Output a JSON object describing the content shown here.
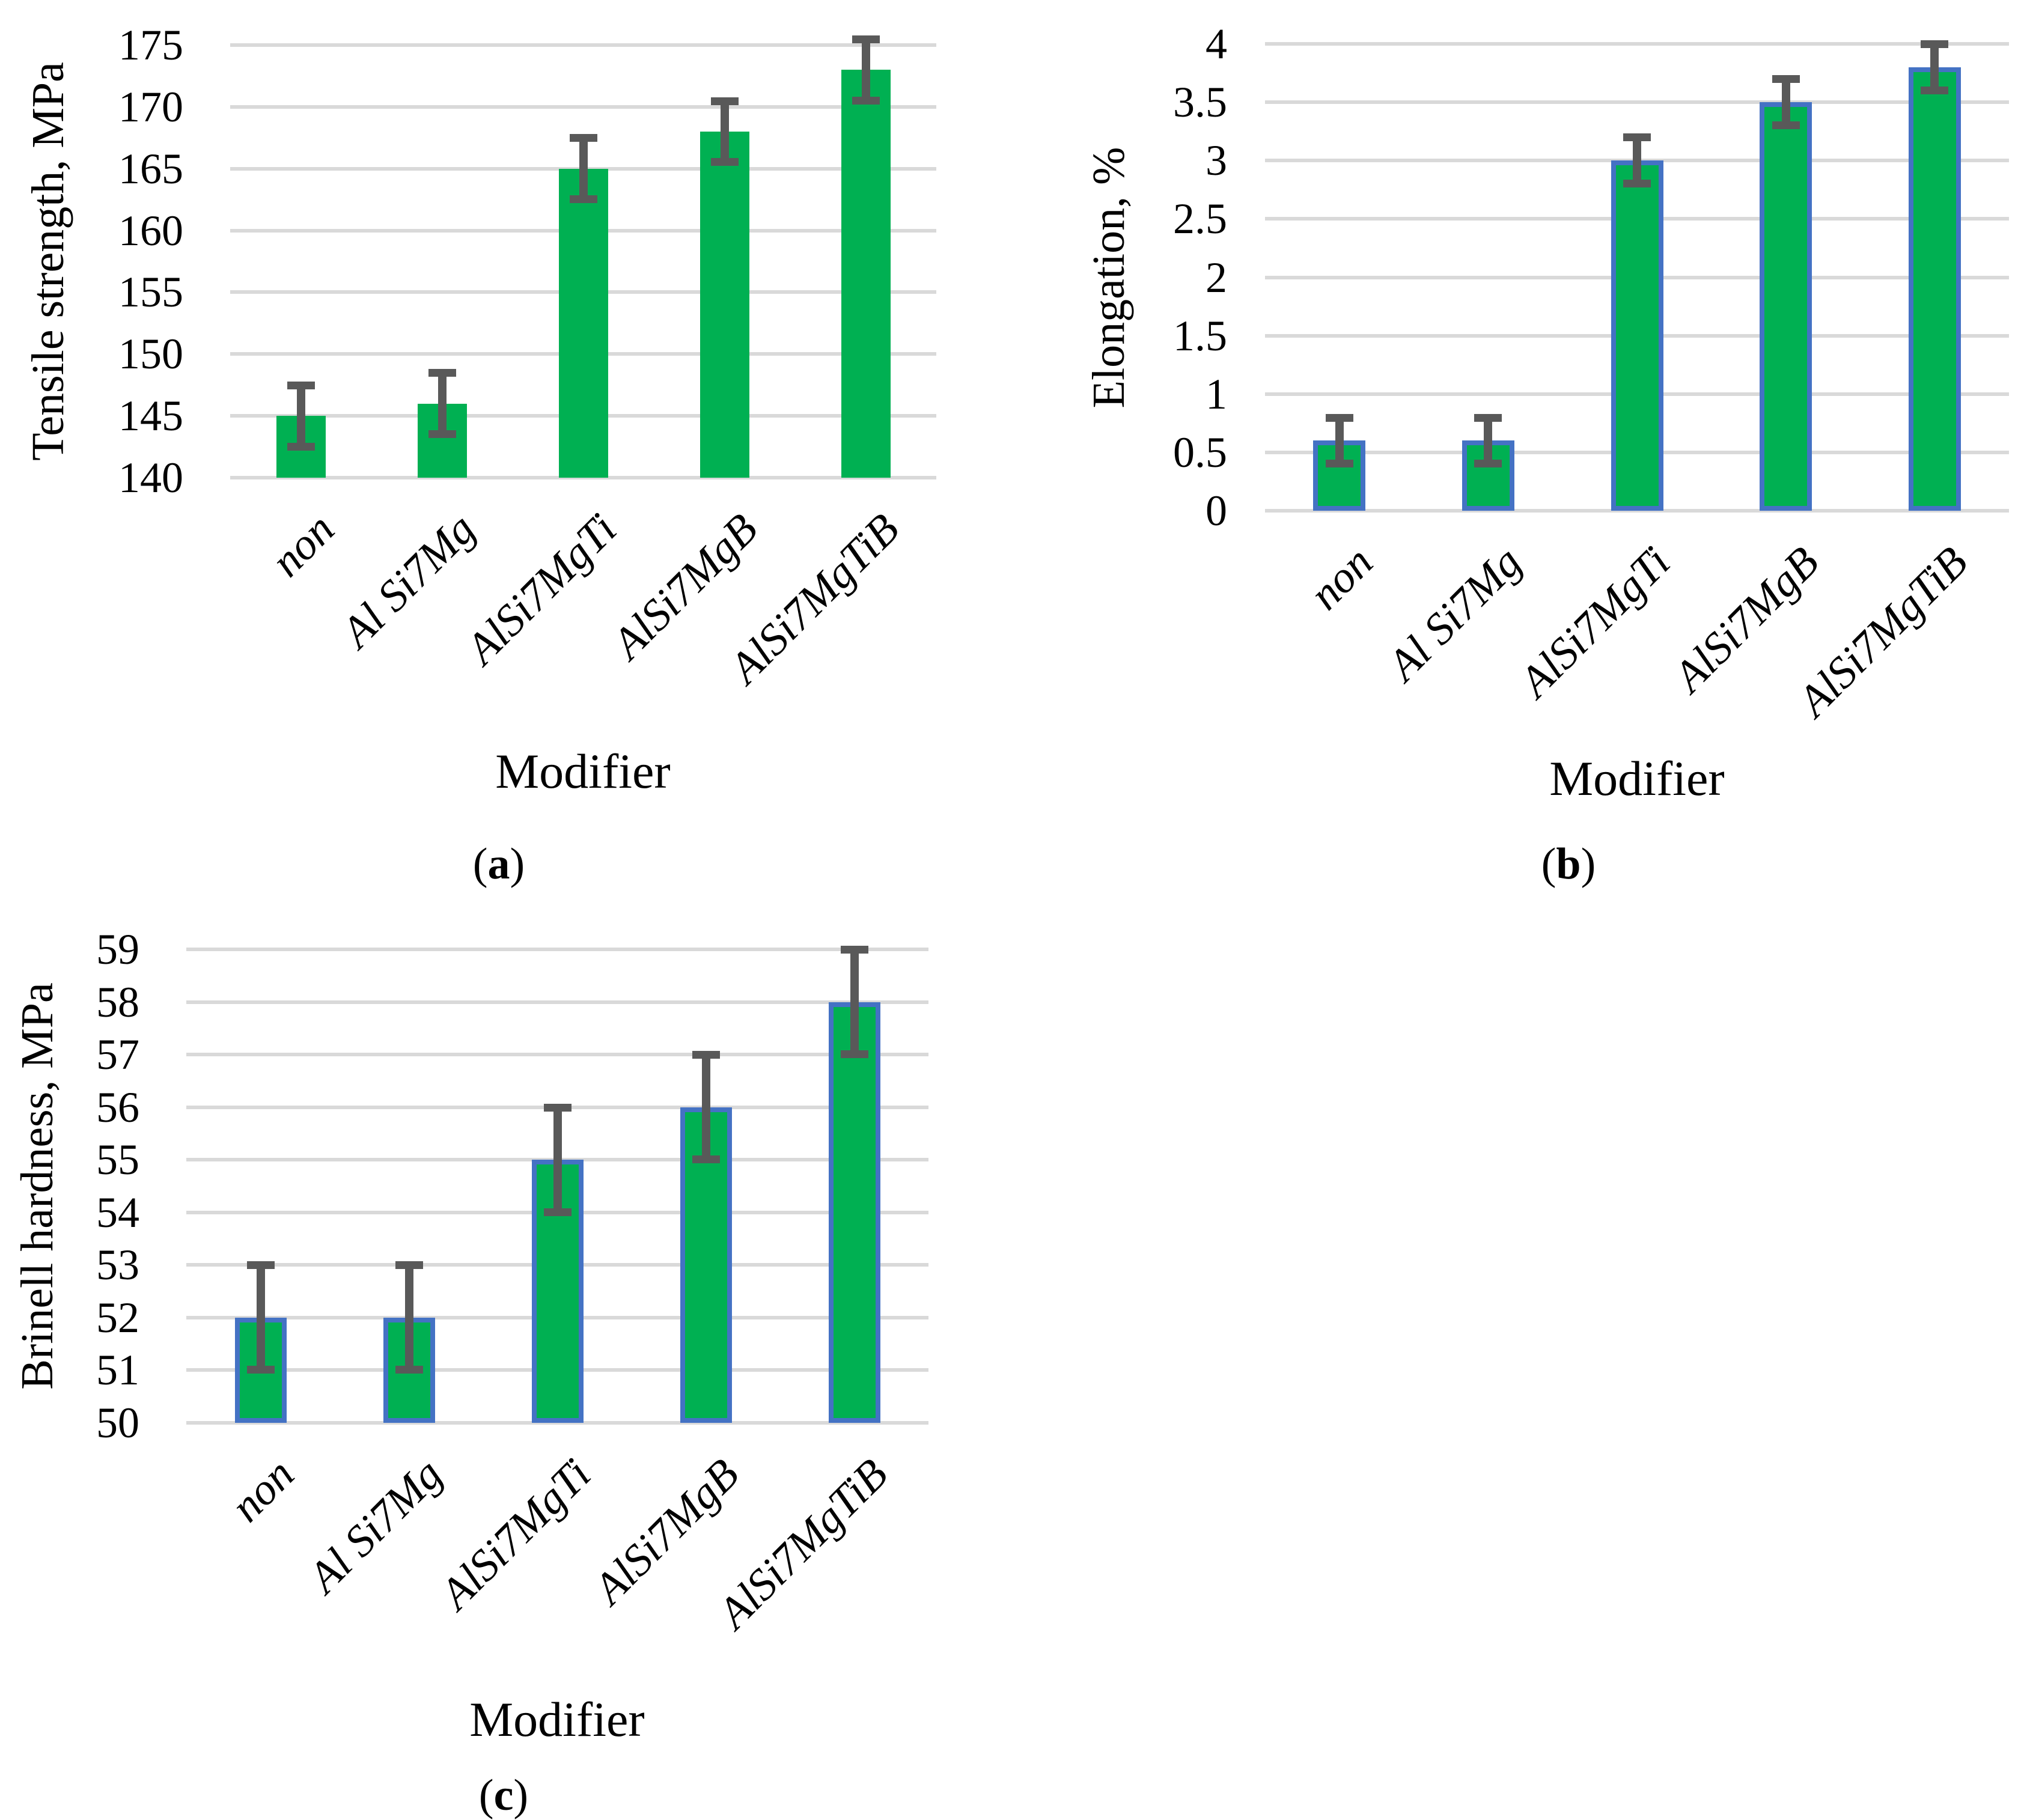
{
  "colors": {
    "bar_fill": "#00B052",
    "bar_border": "#4472C4",
    "error_bar": "#595959",
    "gridline": "#D9D9D9",
    "text": "#000000",
    "background": "#ffffff"
  },
  "chart_data": [
    {
      "type": "bar",
      "panel": "a",
      "caption": "(a)",
      "ylabel": "Tensile strength, MPa",
      "xlabel": "Modifier",
      "categories": [
        "non",
        "Al Si7Mg",
        "AlSi7MgTi",
        "AlSi7MgB",
        "AlSi7MgTiB"
      ],
      "values": [
        145,
        146,
        165,
        168,
        173
      ],
      "error_bars": [
        2.5,
        2.5,
        2.5,
        2.5,
        2.5
      ],
      "ylim": [
        140,
        175
      ],
      "ystep": 5,
      "grid": true,
      "legend": "none",
      "bar_outline": false
    },
    {
      "type": "bar",
      "panel": "b",
      "caption": "(b)",
      "ylabel": "Elongation, %",
      "xlabel": "Modifier",
      "categories": [
        "non",
        "Al Si7Mg",
        "AlSi7MgTi",
        "AlSi7MgB",
        "AlSi7MgTiB"
      ],
      "values": [
        0.6,
        0.6,
        3,
        3.5,
        3.8
      ],
      "error_bars": [
        0.2,
        0.2,
        0.2,
        0.2,
        0.2
      ],
      "ylim": [
        0,
        4
      ],
      "ystep": 0.5,
      "grid": true,
      "legend": "none",
      "bar_outline": true
    },
    {
      "type": "bar",
      "panel": "c",
      "caption": "(c)",
      "ylabel": "Brinell hardness, MPa",
      "xlabel": "Modifier",
      "categories": [
        "non",
        "Al Si7Mg",
        "AlSi7MgTi",
        "AlSi7MgB",
        "AlSi7MgTiB"
      ],
      "values": [
        52,
        52,
        55,
        56,
        58
      ],
      "error_bars": [
        1,
        1,
        1,
        1,
        1
      ],
      "ylim": [
        50,
        59
      ],
      "ystep": 1,
      "grid": true,
      "legend": "none",
      "bar_outline": true
    }
  ]
}
